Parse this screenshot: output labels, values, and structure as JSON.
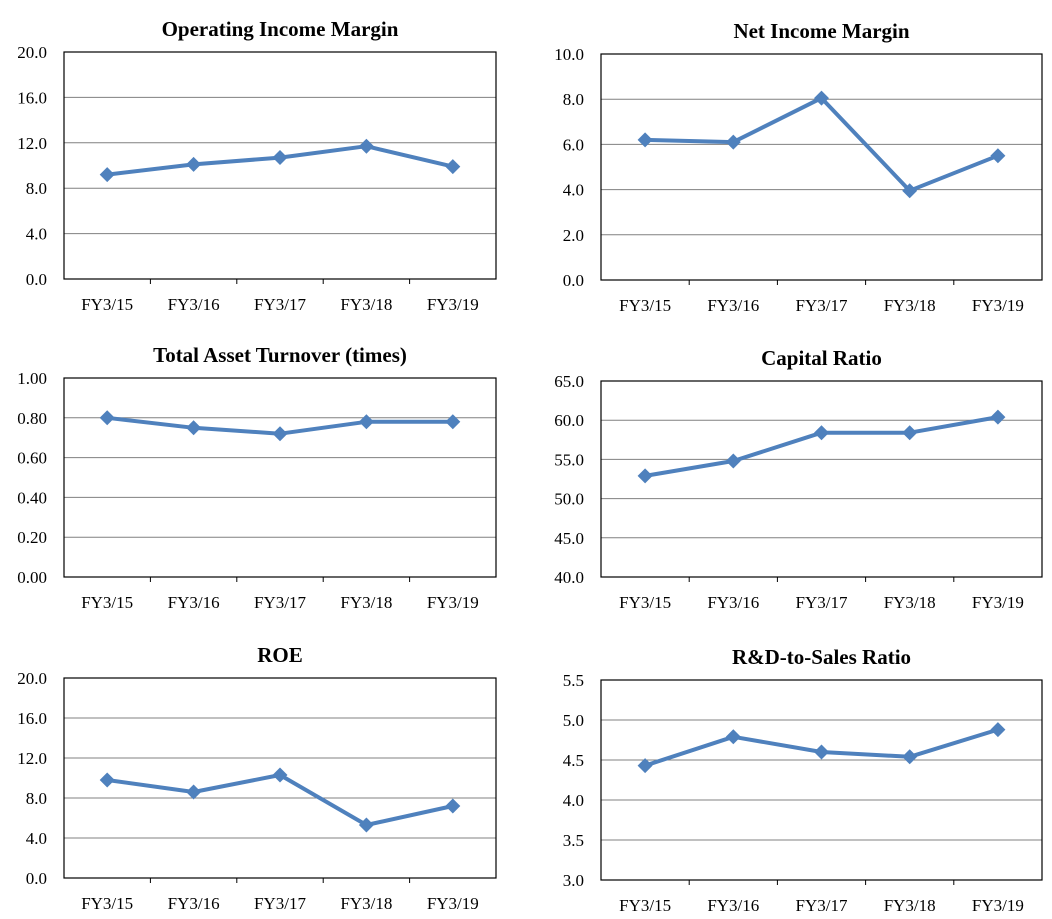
{
  "chart_data": [
    {
      "type": "line",
      "title": "Operating Income Margin",
      "categories": [
        "FY3/15",
        "FY3/16",
        "FY3/17",
        "FY3/18",
        "FY3/19"
      ],
      "values": [
        9.2,
        10.1,
        10.7,
        11.7,
        9.9
      ],
      "ylim": [
        0,
        20
      ],
      "yticks": [
        "0.0",
        "4.0",
        "8.0",
        "12.0",
        "16.0",
        "20.0"
      ],
      "grid": true,
      "color": "#4F81BD"
    },
    {
      "type": "line",
      "title": "Net Income Margin",
      "categories": [
        "FY3/15",
        "FY3/16",
        "FY3/17",
        "FY3/18",
        "FY3/19"
      ],
      "values": [
        6.2,
        6.1,
        8.05,
        3.95,
        5.5
      ],
      "ylim": [
        0,
        10
      ],
      "yticks": [
        "0.0",
        "2.0",
        "4.0",
        "6.0",
        "8.0",
        "10.0"
      ],
      "grid": true,
      "color": "#4F81BD"
    },
    {
      "type": "line",
      "title": "Total Asset Turnover (times)",
      "categories": [
        "FY3/15",
        "FY3/16",
        "FY3/17",
        "FY3/18",
        "FY3/19"
      ],
      "values": [
        0.8,
        0.75,
        0.72,
        0.78,
        0.78
      ],
      "ylim": [
        0,
        1
      ],
      "yticks": [
        "0.00",
        "0.20",
        "0.40",
        "0.60",
        "0.80",
        "1.00"
      ],
      "grid": true,
      "color": "#4F81BD"
    },
    {
      "type": "line",
      "title": "Capital Ratio",
      "categories": [
        "FY3/15",
        "FY3/16",
        "FY3/17",
        "FY3/18",
        "FY3/19"
      ],
      "values": [
        52.9,
        54.8,
        58.4,
        58.4,
        60.4
      ],
      "ylim": [
        40,
        65
      ],
      "yticks": [
        "40.0",
        "45.0",
        "50.0",
        "55.0",
        "60.0",
        "65.0"
      ],
      "grid": true,
      "color": "#4F81BD"
    },
    {
      "type": "line",
      "title": "ROE",
      "categories": [
        "FY3/15",
        "FY3/16",
        "FY3/17",
        "FY3/18",
        "FY3/19"
      ],
      "values": [
        9.8,
        8.6,
        10.3,
        5.3,
        7.2
      ],
      "ylim": [
        0,
        20
      ],
      "yticks": [
        "0.0",
        "4.0",
        "8.0",
        "12.0",
        "16.0",
        "20.0"
      ],
      "grid": true,
      "color": "#4F81BD"
    },
    {
      "type": "line",
      "title": "R&D-to-Sales Ratio",
      "categories": [
        "FY3/15",
        "FY3/16",
        "FY3/17",
        "FY3/18",
        "FY3/19"
      ],
      "values": [
        4.43,
        4.79,
        4.6,
        4.54,
        4.88
      ],
      "ylim": [
        3,
        5.5
      ],
      "yticks": [
        "3.0",
        "3.5",
        "4.0",
        "4.5",
        "5.0",
        "5.5"
      ],
      "grid": true,
      "color": "#4F81BD"
    }
  ]
}
